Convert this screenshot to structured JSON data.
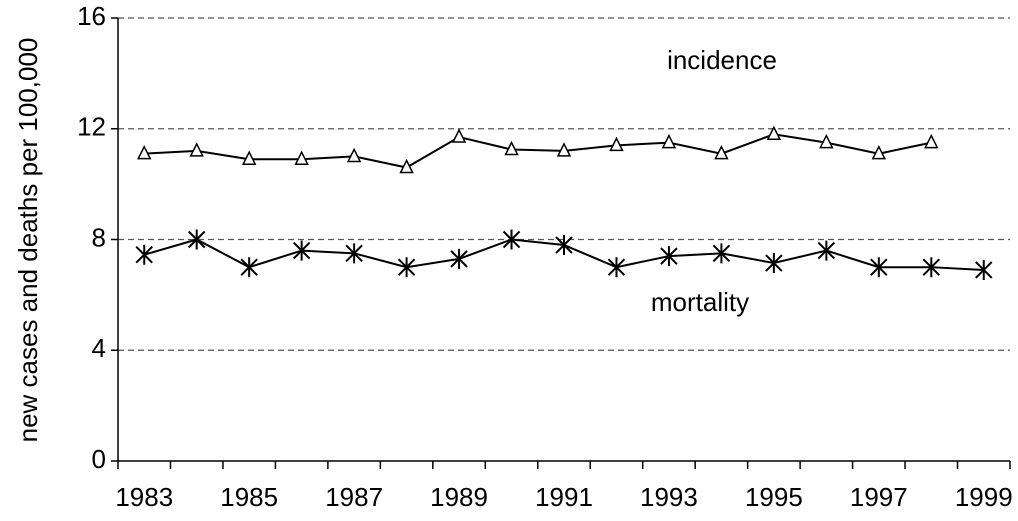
{
  "chart_data": {
    "type": "line",
    "y_label": "new cases and deaths per 100,000",
    "annotations": [
      "incidence",
      "mortality"
    ],
    "categories": [
      "1983",
      null,
      "1985",
      null,
      "1987",
      null,
      "1989",
      null,
      "1991",
      null,
      "1993",
      null,
      "1995",
      null,
      "1997",
      null,
      "1999"
    ],
    "series": [
      {
        "name": "incidence",
        "color": "#000000",
        "marker": "triangle",
        "values": [
          11.1,
          11.2,
          10.9,
          10.9,
          11.0,
          10.6,
          11.7,
          11.25,
          11.2,
          11.4,
          11.5,
          11.1,
          11.8,
          11.5,
          11.1,
          11.5,
          null
        ]
      },
      {
        "name": "mortality",
        "color": "#000000",
        "marker": "asterisk",
        "values": [
          7.45,
          8.0,
          7.0,
          7.6,
          7.5,
          7.0,
          7.3,
          8.0,
          7.8,
          7.0,
          7.4,
          7.5,
          7.15,
          7.6,
          7.0,
          7.0,
          6.9
        ]
      }
    ],
    "ylim": [
      0,
      16
    ],
    "yticks": [
      0,
      4,
      8,
      12,
      16
    ],
    "grid": true
  }
}
